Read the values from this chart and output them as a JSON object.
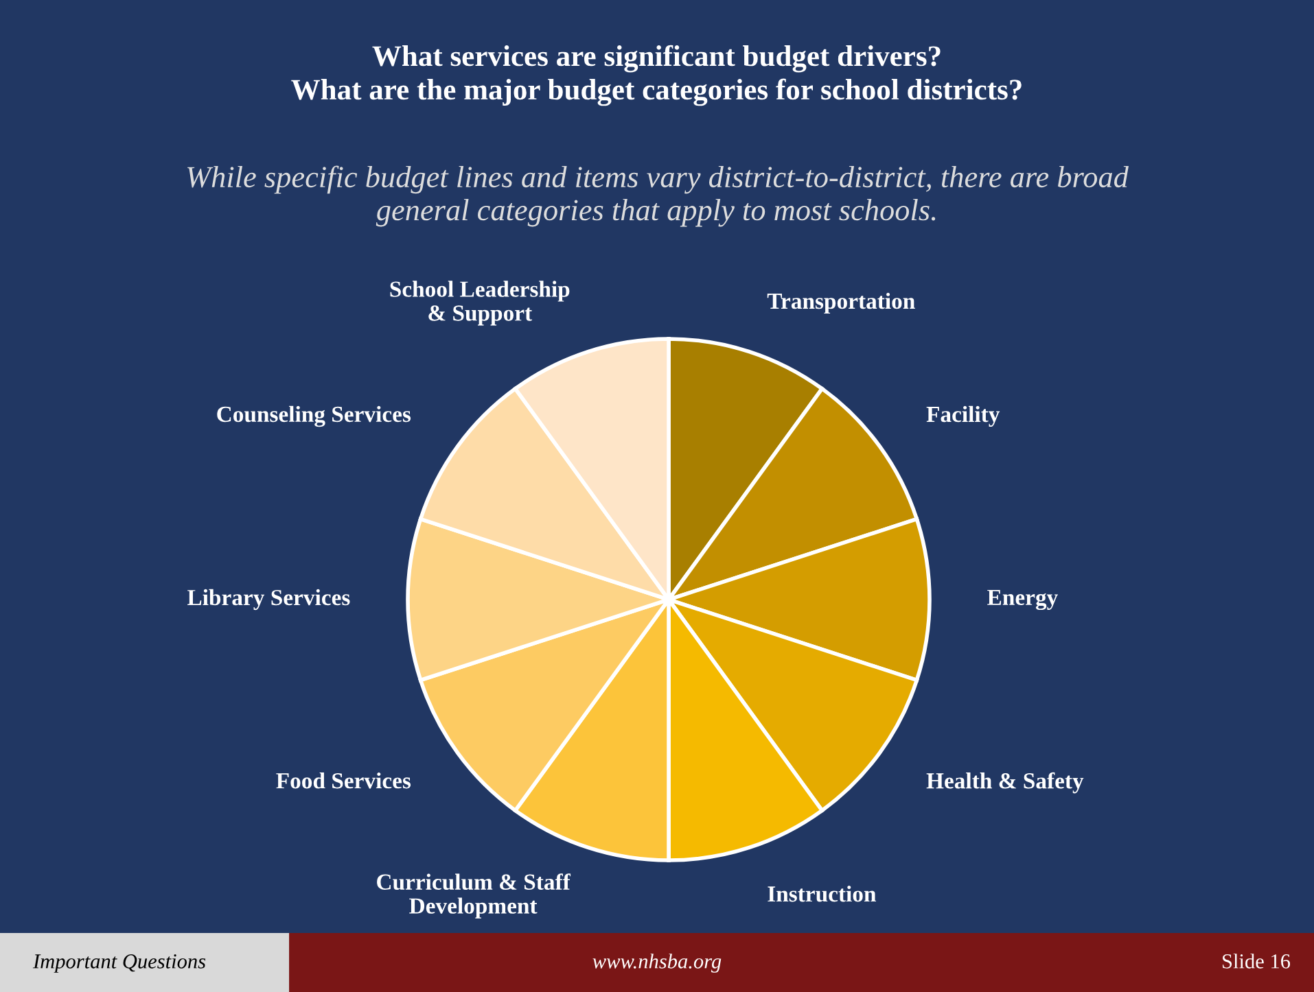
{
  "chart_data": {
    "type": "pie",
    "title": "What services are significant budget drivers?\nWhat are the major budget categories for school districts?",
    "subtitle": "While specific budget lines and items vary district-to-district, there are broad\ngeneral categories that apply to most schools.",
    "categories": [
      "Transportation",
      "Facility",
      "Energy",
      "Health & Safety",
      "Instruction",
      "Curriculum & Staff\nDevelopment",
      "Food Services",
      "Library Services",
      "Counseling Services",
      "School Leadership\n& Support"
    ],
    "values": [
      10,
      10,
      10,
      10,
      10,
      10,
      10,
      10,
      10,
      10
    ],
    "colors": [
      "#a87f00",
      "#c28f00",
      "#d49d00",
      "#e5ab00",
      "#f5ba00",
      "#fcc43a",
      "#fdcb62",
      "#fdd486",
      "#fedca8",
      "#fee5c8"
    ],
    "annotations": [
      "Important Questions",
      "www.nhsba.org",
      "Slide 16"
    ],
    "legend": false
  }
}
